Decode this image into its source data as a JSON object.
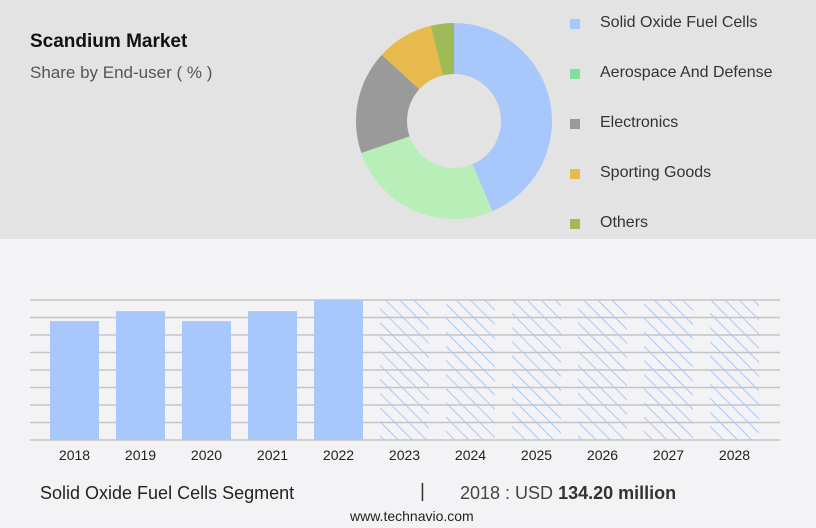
{
  "header": {
    "title": "Scandium Market",
    "subtitle": "Share by End-user ( % )"
  },
  "chart_data": [
    {
      "type": "pie",
      "donut": true,
      "categories": [
        "Solid Oxide Fuel Cells",
        "Aerospace And Defense",
        "Electronics",
        "Sporting Goods",
        "Others"
      ],
      "values": [
        43.6,
        26.1,
        17.1,
        9.4,
        3.8
      ],
      "colors": [
        "#a8c8fc",
        "#b8eeb8",
        "#9a9a9a",
        "#e6ba4c",
        "#9fbb58"
      ],
      "legend_colors": [
        "#a8c8fc",
        "#7ee09a",
        "#9a9a9a",
        "#e6ba4c",
        "#9fbb58"
      ],
      "legend_position": "right"
    },
    {
      "type": "bar",
      "categories": [
        "2018",
        "2019",
        "2020",
        "2021",
        "2022",
        "2023",
        "2024",
        "2025",
        "2026",
        "2027",
        "2028"
      ],
      "values": [
        134.2,
        145.5,
        134.2,
        145.5,
        157.9,
        null,
        null,
        null,
        null,
        null,
        null
      ],
      "forecast": [
        false,
        false,
        false,
        false,
        false,
        true,
        true,
        true,
        true,
        true,
        true
      ],
      "color": "#a8c8fc",
      "ylim": [
        0,
        158
      ],
      "grid": true
    }
  ],
  "footer": {
    "segment": "Solid Oxide Fuel Cells Segment",
    "separator": "|",
    "value_prefix": "2018 : USD",
    "value": "134.20 million",
    "site": "www.technavio.com"
  }
}
